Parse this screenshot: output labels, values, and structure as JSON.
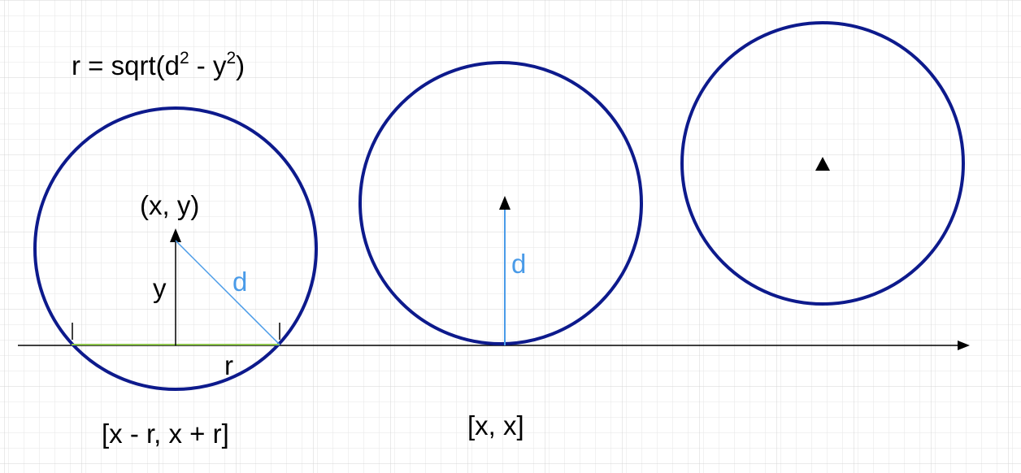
{
  "formula": {
    "base": "r = sqrt(d",
    "exp1": "2",
    "mid": " - y",
    "exp2": "2",
    "close": ")"
  },
  "left": {
    "point_label": "(x, y)",
    "y_label": "y",
    "d_label": "d",
    "r_label": "r",
    "interval_label": "[x - r, x + r]"
  },
  "middle": {
    "d_label": "d",
    "interval_label": "[x, x]"
  },
  "colors": {
    "circle": "#0d1a8c",
    "blue_line": "#4a9be8",
    "green_line": "#8bc34a",
    "axis": "#000000"
  },
  "icons": [
    "arrowhead-icon",
    "triangle-marker-icon"
  ]
}
